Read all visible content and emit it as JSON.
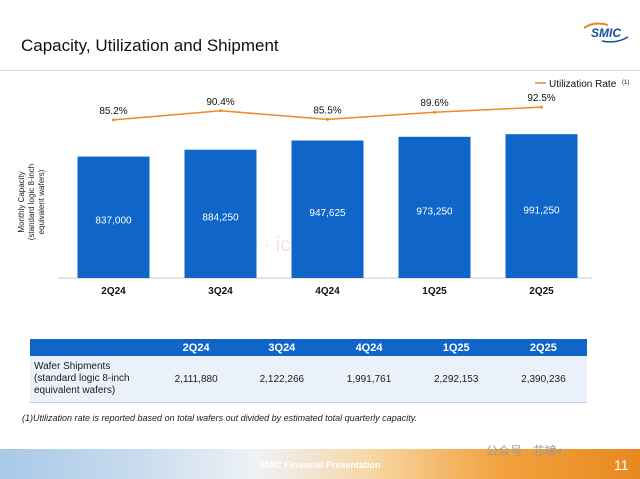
{
  "page": {
    "title": "Capacity, Utilization and Shipment",
    "logo_text": "SMIC",
    "footnote": "(1)Utilization rate is reported based on total wafers out divided by estimated total quarterly capacity.",
    "footer_text": "SMIC Financial Presentation",
    "page_number": "11",
    "watermark_bottom": "公众号 · 芯榜+",
    "watermark_center": "芯榜 · icrank.cn"
  },
  "chart_data": {
    "type": "bar",
    "categories": [
      "2Q24",
      "3Q24",
      "4Q24",
      "1Q25",
      "2Q25"
    ],
    "series": [
      {
        "name": "Monthly Capacity",
        "values": [
          837000,
          884250,
          947625,
          973250,
          991250
        ],
        "labels": [
          "837,000",
          "884,250",
          "947,625",
          "973,250",
          "991,250"
        ],
        "color": "#0f65c8"
      },
      {
        "name": "Utilization Rate",
        "type": "line",
        "values": [
          85.2,
          90.4,
          85.5,
          89.6,
          92.5
        ],
        "labels": [
          "85.2%",
          "90.4%",
          "85.5%",
          "89.6%",
          "92.5%"
        ],
        "color": "#f08a24"
      }
    ],
    "ylabel_lines": [
      "Monthly Capacity",
      "(standard logic 8-inch",
      "equivalent wafers)"
    ],
    "legend_label": "Utilization Rate",
    "legend_superscript": "(1)",
    "ylim": [
      0,
      1100000
    ],
    "line_ylim": [
      60,
      100
    ]
  },
  "table": {
    "headers": [
      "",
      "2Q24",
      "3Q24",
      "4Q24",
      "1Q25",
      "2Q25"
    ],
    "row_label_lines": [
      "Wafer Shipments",
      "(standard logic 8-inch",
      "equivalent wafers)"
    ],
    "values": [
      "2,111,880",
      "2,122,266",
      "1,991,761",
      "2,292,153",
      "2,390,236"
    ]
  }
}
